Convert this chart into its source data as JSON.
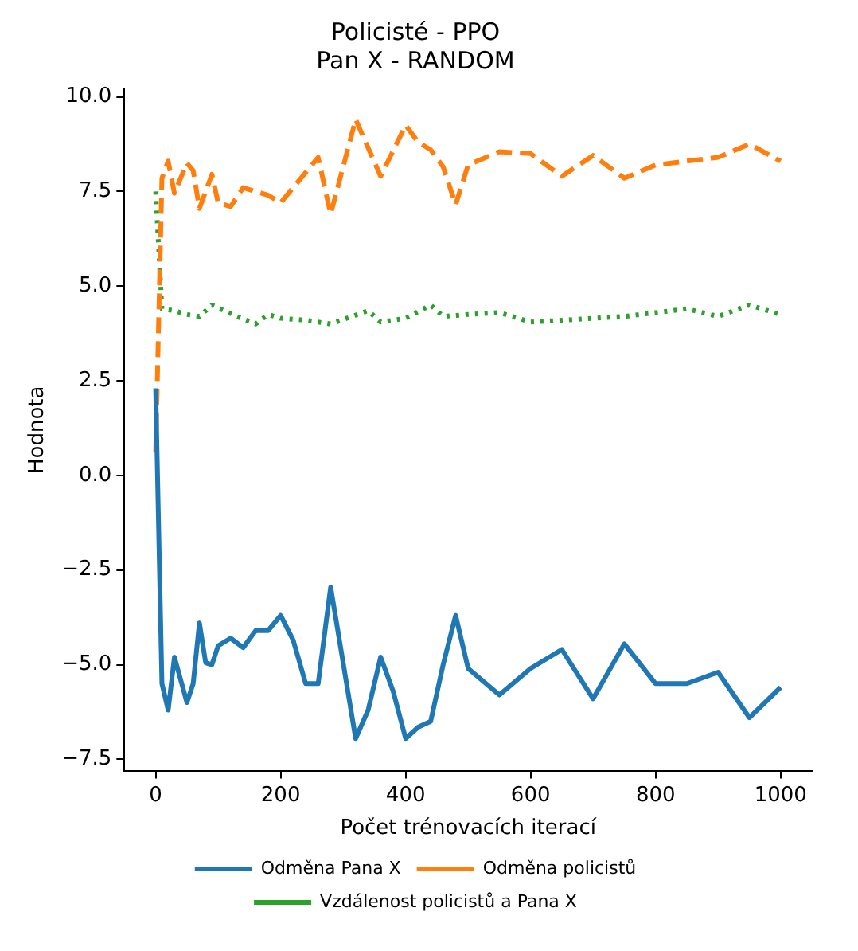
{
  "chart_data": {
    "type": "line",
    "title": "Policisté - PPO\nPan X - RANDOM",
    "xlabel": "Počet trénovacích iterací",
    "ylabel": "Hodnota",
    "xlim": [
      -50,
      1050
    ],
    "xticks": [
      0,
      200,
      400,
      600,
      800,
      1000
    ],
    "ylim": [
      -7.8,
      10.2
    ],
    "yticks": [
      {
        "value": -7.5,
        "label": "−7.5"
      },
      {
        "value": -5,
        "label": "−5.0"
      },
      {
        "value": -2.5,
        "label": "−2.5"
      },
      {
        "value": 0,
        "label": "0.0"
      },
      {
        "value": 2.5,
        "label": "2.5"
      },
      {
        "value": 5,
        "label": "5.0"
      },
      {
        "value": 7.5,
        "label": "7.5"
      },
      {
        "value": 10,
        "label": "10.0"
      }
    ],
    "legend": "bottom",
    "grid": false,
    "marker": "none",
    "series": [
      {
        "name": "Odměna Pana X",
        "color": "#1f77b4",
        "line_style": "solid",
        "x": [
          0,
          10,
          20,
          30,
          50,
          60,
          70,
          80,
          90,
          100,
          120,
          140,
          160,
          180,
          200,
          220,
          240,
          260,
          280,
          320,
          340,
          360,
          380,
          400,
          420,
          440,
          460,
          480,
          500,
          550,
          600,
          650,
          700,
          750,
          800,
          850,
          900,
          950,
          1000
        ],
        "values": [
          2.3,
          -5.5,
          -6.2,
          -4.8,
          -6.0,
          -5.5,
          -3.9,
          -4.95,
          -5.0,
          -4.5,
          -4.3,
          -4.55,
          -4.1,
          -4.1,
          -3.7,
          -4.35,
          -5.5,
          -5.5,
          -2.95,
          -6.95,
          -6.2,
          -4.8,
          -5.7,
          -6.95,
          -6.65,
          -6.5,
          -5.0,
          -3.7,
          -5.1,
          -5.8,
          -5.1,
          -4.6,
          -5.9,
          -4.45,
          -5.5,
          -5.5,
          -5.2,
          -6.4,
          -5.6
        ]
      },
      {
        "name": "Odměna policistů",
        "color": "#ff7f0e",
        "line_style": "dashed",
        "x": [
          0,
          10,
          20,
          30,
          50,
          60,
          70,
          90,
          100,
          120,
          140,
          180,
          200,
          260,
          280,
          320,
          360,
          400,
          420,
          440,
          460,
          480,
          500,
          550,
          600,
          650,
          700,
          750,
          800,
          850,
          900,
          950,
          1000
        ],
        "values": [
          0.6,
          7.85,
          8.3,
          7.45,
          8.25,
          8.05,
          7.05,
          7.95,
          7.2,
          7.1,
          7.6,
          7.4,
          7.2,
          8.4,
          6.9,
          9.4,
          7.9,
          9.25,
          8.8,
          8.6,
          8.15,
          7.15,
          8.2,
          8.55,
          8.5,
          7.9,
          8.45,
          7.85,
          8.2,
          8.3,
          8.4,
          8.75,
          8.3
        ]
      },
      {
        "name": "Vzdálenost policistů a Pana X",
        "color": "#2ca02c",
        "line_style": "dotted",
        "x": [
          0,
          10,
          30,
          50,
          70,
          90,
          110,
          130,
          160,
          180,
          200,
          240,
          280,
          340,
          360,
          400,
          440,
          460,
          500,
          550,
          600,
          650,
          700,
          750,
          800,
          850,
          900,
          950,
          1000
        ],
        "values": [
          7.5,
          4.4,
          4.35,
          4.25,
          4.2,
          4.5,
          4.35,
          4.2,
          4.0,
          4.25,
          4.15,
          4.1,
          4.0,
          4.35,
          4.05,
          4.15,
          4.5,
          4.2,
          4.25,
          4.3,
          4.05,
          4.1,
          4.15,
          4.2,
          4.3,
          4.4,
          4.2,
          4.5,
          4.25
        ]
      }
    ]
  }
}
